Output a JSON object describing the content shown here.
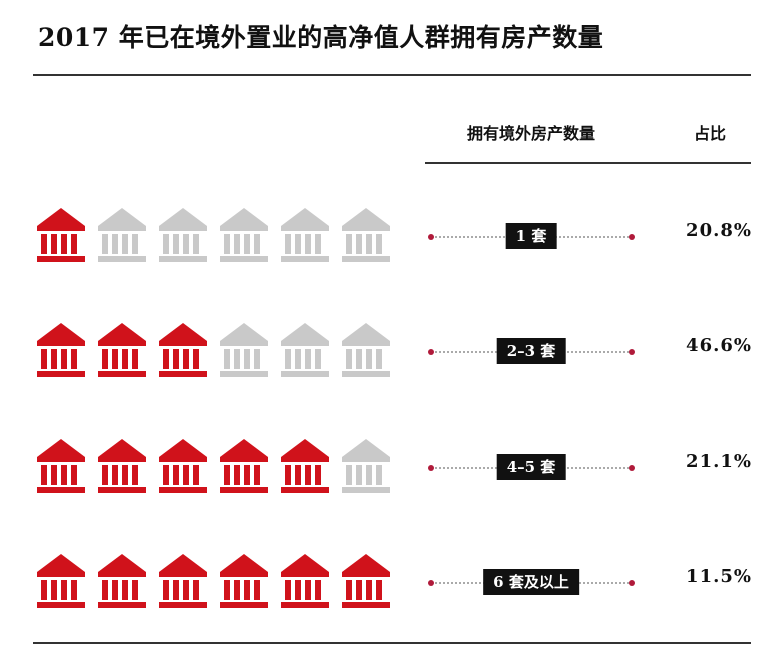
{
  "title": "2017 年已在境外置业的高净值人群拥有房产数量",
  "header": {
    "count_label": "拥有境外房产数量",
    "share_label": "占比"
  },
  "colors": {
    "filled_icon": "#d0121b",
    "empty_icon": "#c9c9c9",
    "tag_bg": "#111111",
    "accent_dot": "#b01a3a"
  },
  "icon_name": "bank-building-icon",
  "total_icons": 6,
  "chart_data": {
    "type": "table",
    "title": "2017 年已在境外置业的高净值人群拥有房产数量",
    "columns": [
      "拥有境外房产数量",
      "占比"
    ],
    "rows": [
      {
        "category": "1 套",
        "value": 20.8,
        "label": "20.8%",
        "icons_filled": 1
      },
      {
        "category": "2–3 套",
        "value": 46.6,
        "label": "46.6%",
        "icons_filled": 3
      },
      {
        "category": "4–5 套",
        "value": 21.1,
        "label": "21.1%",
        "icons_filled": 5
      },
      {
        "category": "6 套及以上",
        "value": 11.5,
        "label": "11.5%",
        "icons_filled": 6
      }
    ]
  }
}
